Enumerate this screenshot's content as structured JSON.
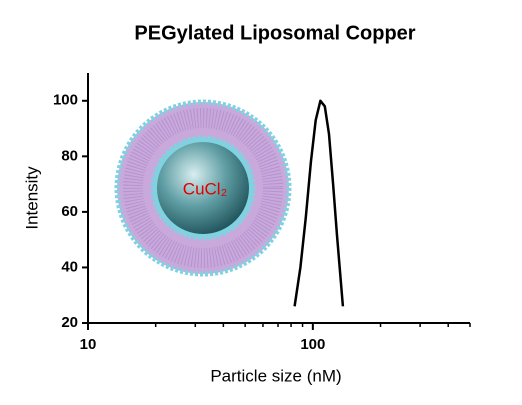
{
  "chart_data": {
    "type": "line",
    "title": "PEGylated Liposomal Copper",
    "x_label": "Particle size (nM)",
    "y_label": "Intensity",
    "annotation": "CuCl₂",
    "x_scale": "log",
    "xlim": [
      10,
      500
    ],
    "xticks": [
      10,
      100
    ],
    "xminorticks": [
      20,
      30,
      40,
      50,
      60,
      70,
      80,
      90,
      200,
      300,
      400,
      500
    ],
    "ylim": [
      20,
      110
    ],
    "yticks": [
      20,
      40,
      60,
      80,
      100
    ],
    "series": [
      {
        "color": "#000000",
        "x": [
          83,
          88,
          93,
          98,
          103,
          108,
          113,
          118,
          123,
          128,
          136
        ],
        "values": [
          26,
          40,
          58,
          78,
          93,
          100,
          98,
          88,
          70,
          52,
          26
        ]
      }
    ]
  }
}
